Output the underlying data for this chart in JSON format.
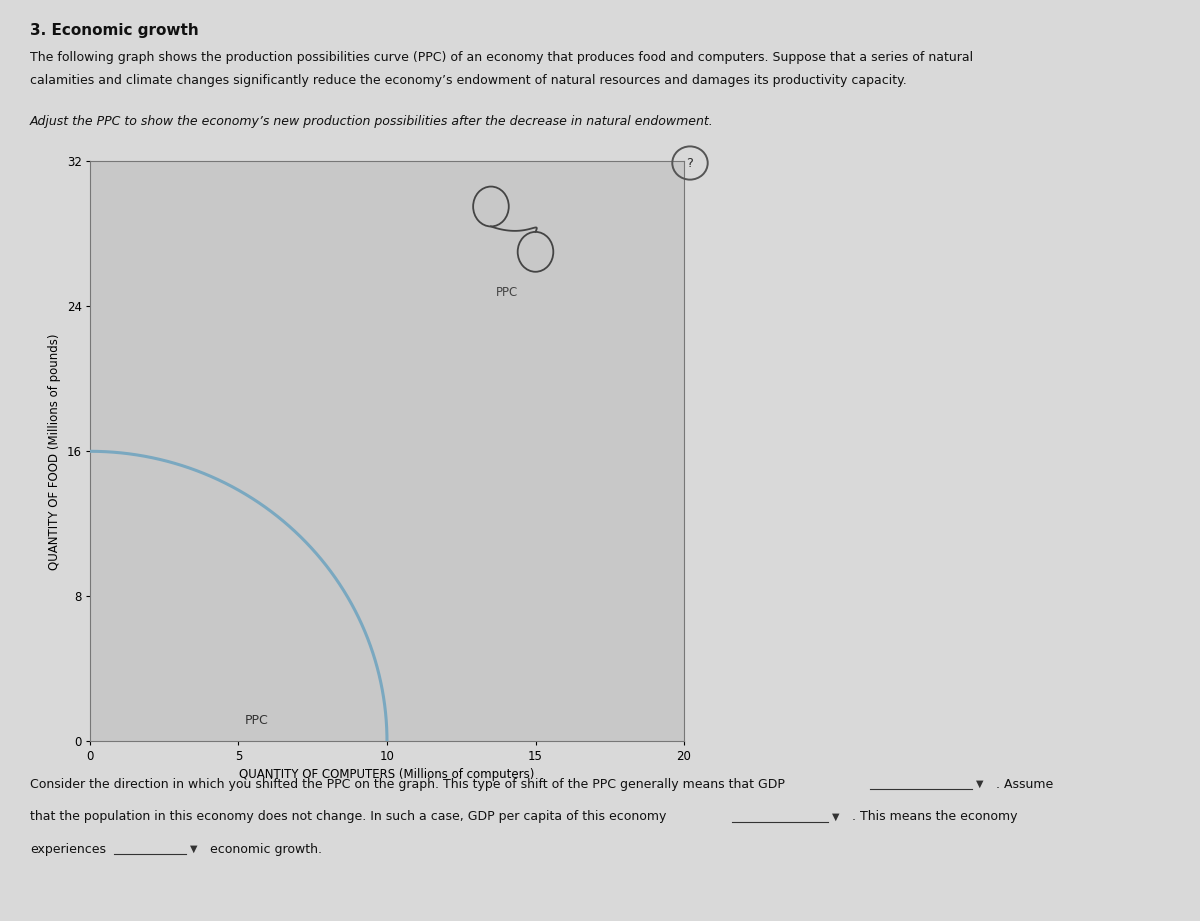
{
  "title": "3. Economic growth",
  "paragraph1a": "The following graph shows the production possibilities curve (PPC) of an economy that produces food and computers. Suppose that a series of natural",
  "paragraph1b": "calamities and climate changes significantly reduce the economy’s endowment of natural resources and damages its productivity capacity.",
  "italic_label": "Adjust the PPC to show the economy’s new production possibilities after the decrease in natural endowment.",
  "page_bg_color": "#d9d9d9",
  "plot_bg_color": "#c8c8c8",
  "ppc_color": "#7aa8c0",
  "ppc_label": "PPC",
  "xlabel": "QUANTITY OF COMPUTERS (Millions of computers)",
  "ylabel": "QUANTITY OF FOOD (Millions of pounds)",
  "xlim": [
    0,
    20
  ],
  "ylim": [
    0,
    32
  ],
  "xticks": [
    0,
    5,
    10,
    15,
    20
  ],
  "yticks": [
    0,
    8,
    16,
    24,
    32
  ],
  "ppc_x_max": 10,
  "ppc_y_max": 16,
  "footer_text1": "Consider the direction in which you shifted the PPC on the graph. This type of shift of the PPC generally means that GDP",
  "footer_text2": ". Assume",
  "footer_text3": "that the population in this economy does not change. In such a case, GDP per capita of this economy",
  "footer_text4": ". This means the economy",
  "footer_text5": "experiences",
  "footer_text6": "economic growth."
}
